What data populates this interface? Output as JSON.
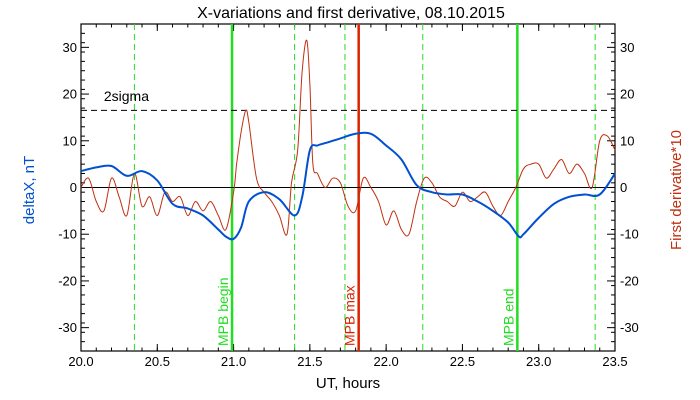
{
  "chart_data": {
    "type": "line",
    "title": "X-variations and first derivative, 08.10.2015",
    "xlabel": "UT, hours",
    "ylabel_left": "deltaX, nT",
    "ylabel_right": "First derivative*10",
    "xlim": [
      20.0,
      23.5
    ],
    "ylim": [
      -35,
      35
    ],
    "x_ticks": [
      20.0,
      20.5,
      21.0,
      21.5,
      22.0,
      22.5,
      23.0,
      23.5
    ],
    "y_ticks": [
      -30,
      -20,
      -10,
      0,
      10,
      20,
      30
    ],
    "grid": false,
    "colors": {
      "deltaX": "#0050d0",
      "derivative": "#c03010",
      "green": "#22dd22",
      "red": "#dd2200"
    },
    "series": [
      {
        "name": "deltaX, nT",
        "axis": "left",
        "x": [
          20.0,
          20.1,
          20.2,
          20.3,
          20.4,
          20.5,
          20.6,
          20.7,
          20.8,
          20.9,
          20.95,
          21.0,
          21.05,
          21.1,
          21.2,
          21.3,
          21.4,
          21.45,
          21.5,
          21.55,
          21.6,
          21.7,
          21.8,
          21.9,
          22.0,
          22.1,
          22.2,
          22.3,
          22.4,
          22.5,
          22.6,
          22.7,
          22.8,
          22.87,
          22.9,
          23.0,
          23.1,
          23.2,
          23.3,
          23.4,
          23.5
        ],
        "y": [
          3.5,
          4.3,
          4.6,
          2.5,
          3.5,
          1.5,
          -3.5,
          -4.5,
          -6.0,
          -9.0,
          -10.5,
          -11.0,
          -8.5,
          -3.0,
          -1.0,
          -2.5,
          -6.0,
          -2.0,
          8.0,
          9.0,
          9.5,
          10.5,
          11.5,
          11.5,
          9.0,
          6.0,
          0.5,
          -1.0,
          -1.5,
          -1.5,
          -3.0,
          -5.0,
          -7.5,
          -10.5,
          -10.0,
          -6.5,
          -3.5,
          -2.0,
          -1.5,
          -1.5,
          3.0
        ]
      },
      {
        "name": "First derivative*10",
        "axis": "right",
        "x": [
          20.0,
          20.05,
          20.1,
          20.15,
          20.2,
          20.25,
          20.3,
          20.35,
          20.4,
          20.45,
          20.5,
          20.55,
          20.6,
          20.65,
          20.7,
          20.75,
          20.8,
          20.85,
          20.9,
          20.95,
          21.0,
          21.02,
          21.05,
          21.08,
          21.1,
          21.15,
          21.2,
          21.25,
          21.3,
          21.35,
          21.38,
          21.42,
          21.45,
          21.48,
          21.5,
          21.52,
          21.55,
          21.6,
          21.65,
          21.7,
          21.75,
          21.8,
          21.85,
          21.9,
          21.95,
          22.0,
          22.05,
          22.1,
          22.15,
          22.2,
          22.25,
          22.3,
          22.35,
          22.4,
          22.45,
          22.5,
          22.55,
          22.6,
          22.65,
          22.7,
          22.75,
          22.8,
          22.85,
          22.9,
          22.95,
          23.0,
          23.05,
          23.1,
          23.15,
          23.2,
          23.25,
          23.3,
          23.35,
          23.4,
          23.45,
          23.5
        ],
        "y": [
          0,
          2,
          -3,
          -5,
          2,
          -2,
          -6,
          3,
          -4,
          -2,
          -6,
          -1,
          -3,
          -2,
          -6,
          -3,
          -5,
          -3,
          -6,
          -9,
          -1,
          5,
          12,
          16.5,
          14,
          2,
          -1,
          -3,
          -6,
          -10,
          1,
          8,
          25,
          31.5,
          22,
          5,
          3,
          0,
          2,
          1,
          -4,
          -5,
          2,
          0,
          -3,
          -8,
          -5,
          -9,
          -10,
          -3,
          2,
          1,
          -2,
          -3,
          -4,
          -1,
          -3,
          -2,
          -1,
          -4,
          -6,
          -3,
          0,
          4,
          5,
          5,
          2,
          4,
          6,
          3,
          5,
          3,
          0,
          10,
          11,
          8
        ]
      }
    ],
    "annotations": [
      {
        "text": "2sigma",
        "x": 20.15,
        "y": 18.5
      }
    ],
    "threshold": {
      "label": "2sigma",
      "y": 16.5,
      "style": "dashed"
    },
    "zero_line": 0,
    "markers_solid": [
      {
        "x": 20.99,
        "color": "green",
        "label": "MPB begin"
      },
      {
        "x": 21.82,
        "color": "red",
        "label": "MPB max"
      },
      {
        "x": 22.86,
        "color": "green",
        "label": "MPB end"
      }
    ],
    "markers_dashed": [
      20.35,
      21.4,
      21.73,
      22.24,
      23.37
    ]
  }
}
